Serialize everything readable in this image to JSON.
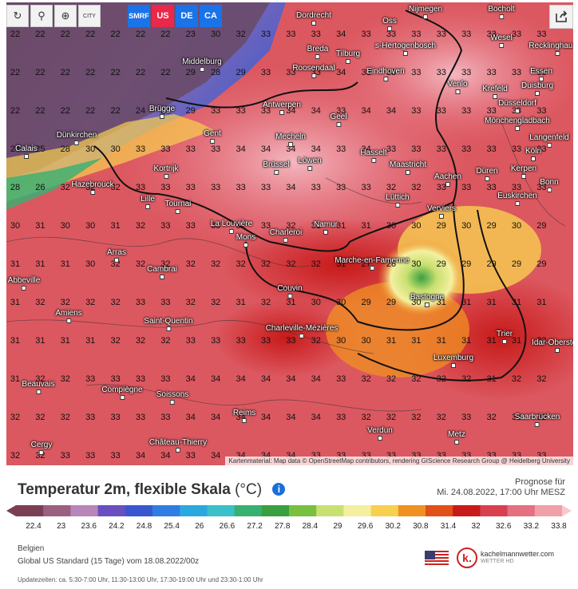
{
  "toolbar": {
    "buttons": [
      {
        "name": "refresh",
        "glyph": "↻"
      },
      {
        "name": "location",
        "glyph": "⚲"
      },
      {
        "name": "zoom",
        "glyph": "⊕"
      },
      {
        "name": "city",
        "glyph": "CITY"
      }
    ],
    "models": [
      {
        "label": "SMRF",
        "color": "#1a73e8"
      },
      {
        "label": "US",
        "color": "#e8294a"
      },
      {
        "label": "DE",
        "color": "#1a73e8"
      },
      {
        "label": "CA",
        "color": "#1a73e8"
      }
    ]
  },
  "cities": [
    {
      "name": "Dordrecht"
    },
    {
      "name": "Oss"
    },
    {
      "name": "Nijmegen"
    },
    {
      "name": "Bocholt"
    },
    {
      "name": "Breda"
    },
    {
      "name": "Tilburg"
    },
    {
      "name": "s-Hertogenbosch"
    },
    {
      "name": "Wesel"
    },
    {
      "name": "Recklinghausen"
    },
    {
      "name": "Middelburg"
    },
    {
      "name": "Roosendaal"
    },
    {
      "name": "Eindhoven"
    },
    {
      "name": "Venlo"
    },
    {
      "name": "Essen"
    },
    {
      "name": "Duisburg"
    },
    {
      "name": "Krefeld"
    },
    {
      "name": "Düsseldorf"
    },
    {
      "name": "Brügge"
    },
    {
      "name": "Antwerpen"
    },
    {
      "name": "Geel"
    },
    {
      "name": "Mönchengladbach"
    },
    {
      "name": "Dünkirchen"
    },
    {
      "name": "Gent"
    },
    {
      "name": "Mecheln"
    },
    {
      "name": "Langenfeld"
    },
    {
      "name": "Calais"
    },
    {
      "name": "Hasselt"
    },
    {
      "name": "Köln"
    },
    {
      "name": "Brüssel"
    },
    {
      "name": "Löwen"
    },
    {
      "name": "Maastricht"
    },
    {
      "name": "Düren"
    },
    {
      "name": "Kerpen"
    },
    {
      "name": "Kortrijk"
    },
    {
      "name": "Aachen"
    },
    {
      "name": "Hazebrouck"
    },
    {
      "name": "Bonn"
    },
    {
      "name": "Euskirchen"
    },
    {
      "name": "Lille"
    },
    {
      "name": "Lüttich"
    },
    {
      "name": "Tournai"
    },
    {
      "name": "Verviers"
    },
    {
      "name": "La Louvière"
    },
    {
      "name": "Namur"
    },
    {
      "name": "Mons"
    },
    {
      "name": "Charleroi"
    },
    {
      "name": "Arras"
    },
    {
      "name": "Marche-en-Famenne"
    },
    {
      "name": "Cambrai"
    },
    {
      "name": "Abbeville"
    },
    {
      "name": "Couvin"
    },
    {
      "name": "Bastogne"
    },
    {
      "name": "Amiens"
    },
    {
      "name": "Saint-Quentin"
    },
    {
      "name": "Charleville-Mézières"
    },
    {
      "name": "Trier"
    },
    {
      "name": "Idar-Oberstein"
    },
    {
      "name": "Luxemburg"
    },
    {
      "name": "Beauvais"
    },
    {
      "name": "Compiègne"
    },
    {
      "name": "Soissons"
    },
    {
      "name": "Reims"
    },
    {
      "name": "Saarbrücken"
    },
    {
      "name": "Verdun"
    },
    {
      "name": "Metz"
    },
    {
      "name": "Château-Thierry"
    },
    {
      "name": "Cergy"
    }
  ],
  "grid_rows": [
    [
      "22",
      "22",
      "22",
      "22",
      "22",
      "22",
      "22",
      "23",
      "30",
      "32",
      "33",
      "33",
      "33",
      "34",
      "33",
      "33",
      "33",
      "33",
      "33",
      "33",
      "33",
      "33"
    ],
    [
      "22",
      "22",
      "22",
      "22",
      "22",
      "22",
      "22",
      "29",
      "28",
      "29",
      "33",
      "33",
      "33",
      "34",
      "33",
      "33",
      "33",
      "33",
      "33",
      "33",
      "33",
      "33"
    ],
    [
      "22",
      "22",
      "22",
      "22",
      "22",
      "24",
      "24",
      "29",
      "33",
      "33",
      "33",
      "34",
      "34",
      "33",
      "34",
      "34",
      "33",
      "33",
      "33",
      "33",
      "33",
      "33"
    ],
    [
      "24",
      "25",
      "28",
      "30",
      "30",
      "33",
      "33",
      "33",
      "33",
      "34",
      "34",
      "34",
      "34",
      "33",
      "34",
      "33",
      "33",
      "33",
      "33",
      "33",
      "33",
      "33"
    ],
    [
      "28",
      "26",
      "32",
      "32",
      "32",
      "33",
      "33",
      "33",
      "33",
      "33",
      "33",
      "34",
      "33",
      "33",
      "33",
      "32",
      "32",
      "33",
      "33",
      "33",
      "33",
      "33"
    ],
    [
      "30",
      "31",
      "30",
      "30",
      "31",
      "32",
      "33",
      "33",
      "33",
      "32",
      "33",
      "32",
      "31",
      "31",
      "31",
      "30",
      "30",
      "29",
      "30",
      "29",
      "30",
      "29"
    ],
    [
      "31",
      "31",
      "31",
      "30",
      "32",
      "32",
      "32",
      "32",
      "32",
      "32",
      "32",
      "32",
      "32",
      "31",
      "27",
      "28",
      "30",
      "29",
      "29",
      "29",
      "29",
      "29"
    ],
    [
      "31",
      "32",
      "32",
      "32",
      "32",
      "33",
      "33",
      "32",
      "32",
      "31",
      "32",
      "31",
      "30",
      "30",
      "29",
      "29",
      "30",
      "31",
      "31",
      "31",
      "31",
      "31"
    ],
    [
      "31",
      "31",
      "31",
      "31",
      "32",
      "32",
      "32",
      "33",
      "33",
      "33",
      "33",
      "33",
      "32",
      "30",
      "30",
      "31",
      "31",
      "31",
      "31",
      "31",
      "31",
      "32"
    ],
    [
      "31",
      "32",
      "32",
      "33",
      "33",
      "33",
      "33",
      "34",
      "34",
      "34",
      "34",
      "34",
      "34",
      "33",
      "32",
      "32",
      "32",
      "32",
      "32",
      "31",
      "32",
      "32"
    ],
    [
      "32",
      "32",
      "32",
      "33",
      "33",
      "33",
      "33",
      "34",
      "34",
      "34",
      "34",
      "34",
      "34",
      "33",
      "32",
      "32",
      "32",
      "32",
      "33",
      "32",
      "33",
      "32"
    ],
    [
      "32",
      "32",
      "33",
      "33",
      "33",
      "34",
      "34",
      "33",
      "34",
      "34",
      "34",
      "34",
      "33",
      "33",
      "33",
      "33",
      "33",
      "33",
      "33",
      "33",
      "33",
      "33"
    ]
  ],
  "attribution": "Kartenmaterial: Map data © OpenStreetMap contributors, rendering GIScience Research Group @ Heidelberg University",
  "title": "Temperatur 2m, flexible Skala",
  "unit": "(°C)",
  "forecast_label": "Prognose für",
  "forecast_time": "Mi. 24.08.2022, 17:00 Uhr MESZ",
  "legend": {
    "ticks": [
      "22.4",
      "23",
      "23.6",
      "24.2",
      "24.8",
      "25.4",
      "26",
      "26.6",
      "27.2",
      "27.8",
      "28.4",
      "29",
      "29.6",
      "30.2",
      "30.8",
      "31.4",
      "32",
      "32.6",
      "33.2",
      "33.8"
    ],
    "colors": [
      "#7a3f55",
      "#9a6080",
      "#b986b9",
      "#6a4fc0",
      "#3a55d0",
      "#2f7de0",
      "#2aa8e0",
      "#3ac0c8",
      "#38b070",
      "#38a040",
      "#7ac040",
      "#c8e070",
      "#f4f0a0",
      "#f8d050",
      "#f09020",
      "#e05018",
      "#c81a1a",
      "#d84050",
      "#e47080",
      "#f0a0a8"
    ]
  },
  "meta_region": "Belgien",
  "meta_model": "Global US Standard (15 Tage) vom 18.08.2022/00z",
  "brand_name": "kachelmannwetter.com",
  "brand_sub": "WETTER HD",
  "updates": "Updatezeiten: ca. 5:30-7:00 Uhr, 11:30-13:00 Uhr, 17:30-19:00 Uhr und 23:30-1:00 Uhr"
}
